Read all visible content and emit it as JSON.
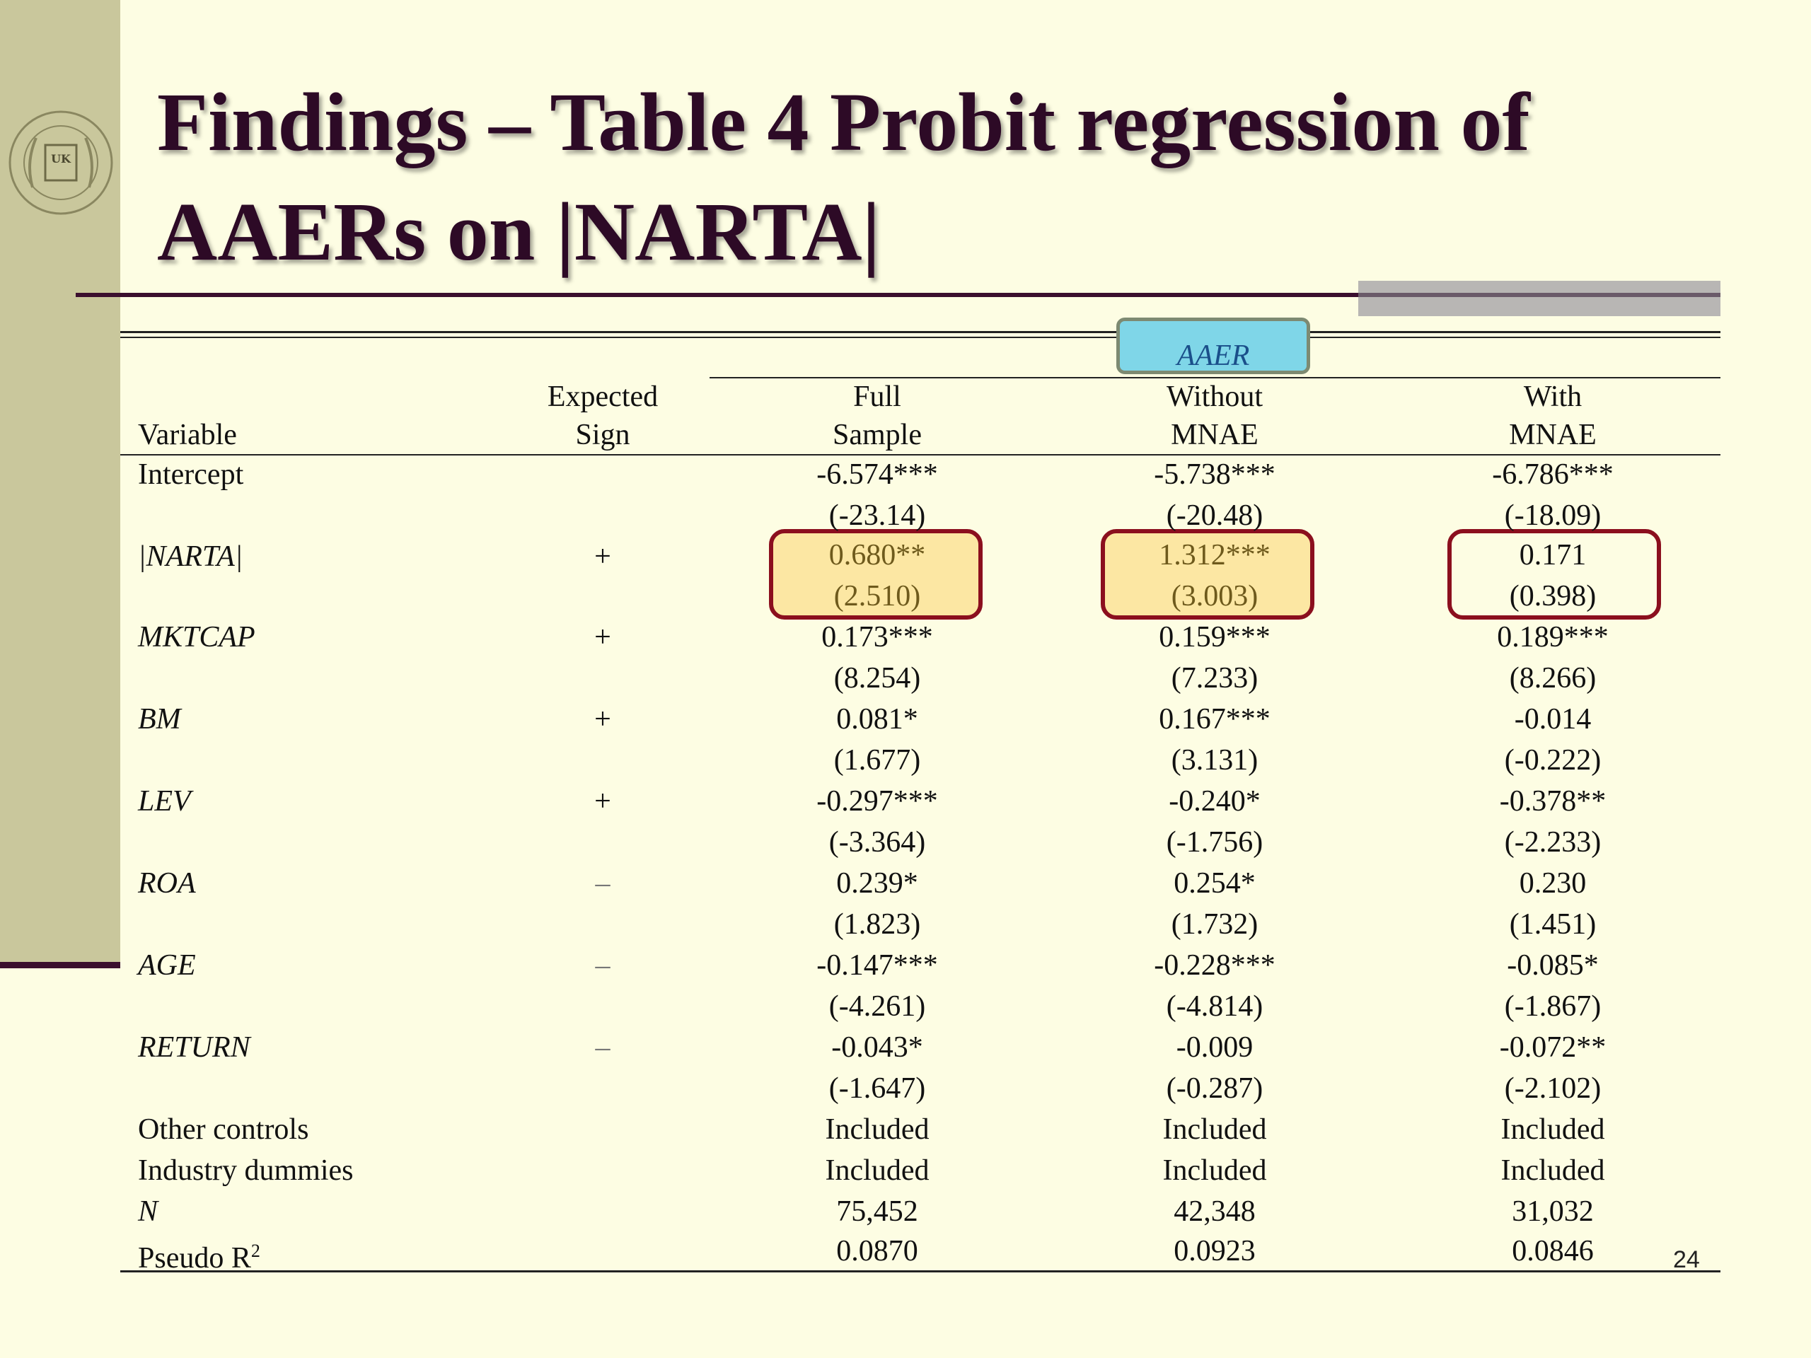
{
  "slide": {
    "title_line1": "Findings – Table 4 Probit regression of",
    "title_line2": "AAERs on |NARTA|",
    "page_number": "24",
    "logo_text": "GATTON COLLEGE OF BUSINESS AND ECONOMICS",
    "logo_mark": "UK"
  },
  "table": {
    "group_header": "AAER",
    "headers": {
      "variable": "Variable",
      "sign_line1": "Expected",
      "sign_line2": "Sign",
      "full_line1": "Full",
      "full_line2": "Sample",
      "wo_line1": "Without",
      "wo_line2": "MNAE",
      "w_line1": "With",
      "w_line2": "MNAE"
    },
    "rows": [
      {
        "var": "Intercept",
        "sign": "",
        "full": "-6.574***",
        "full_t": "(-23.14)",
        "wo": "-5.738***",
        "wo_t": "(-20.48)",
        "w": "-6.786***",
        "w_t": "(-18.09)"
      },
      {
        "var": "|NARTA|",
        "sign": "+",
        "full": "0.680**",
        "full_t": "(2.510)",
        "wo": "1.312***",
        "wo_t": "(3.003)",
        "w": "0.171",
        "w_t": "(0.398)"
      },
      {
        "var": "MKTCAP",
        "sign": "+",
        "full": "0.173***",
        "full_t": "(8.254)",
        "wo": "0.159***",
        "wo_t": "(7.233)",
        "w": "0.189***",
        "w_t": "(8.266)"
      },
      {
        "var": "BM",
        "sign": "+",
        "full": "0.081*",
        "full_t": "(1.677)",
        "wo": "0.167***",
        "wo_t": "(3.131)",
        "w": "-0.014",
        "w_t": "(-0.222)"
      },
      {
        "var": "LEV",
        "sign": "+",
        "full": "-0.297***",
        "full_t": "(-3.364)",
        "wo": "-0.240*",
        "wo_t": "(-1.756)",
        "w": "-0.378**",
        "w_t": "(-2.233)"
      },
      {
        "var": "ROA",
        "sign": "–",
        "full": "0.239*",
        "full_t": "(1.823)",
        "wo": "0.254*",
        "wo_t": "(1.732)",
        "w": "0.230",
        "w_t": "(1.451)"
      },
      {
        "var": "AGE",
        "sign": "–",
        "full": "-0.147***",
        "full_t": "(-4.261)",
        "wo": "-0.228***",
        "wo_t": "(-4.814)",
        "w": "-0.085*",
        "w_t": "(-1.867)"
      },
      {
        "var": "RETURN",
        "sign": "–",
        "full": "-0.043*",
        "full_t": "(-1.647)",
        "wo": "-0.009",
        "wo_t": "(-0.287)",
        "w": "-0.072**",
        "w_t": "(-2.102)"
      }
    ],
    "footer_rows": [
      {
        "var": "Other controls",
        "full": "Included",
        "wo": "Included",
        "w": "Included"
      },
      {
        "var": "Industry dummies",
        "full": "Included",
        "wo": "Included",
        "w": "Included"
      },
      {
        "var": "N",
        "full": "75,452",
        "wo": "42,348",
        "w": "31,032"
      },
      {
        "var": "Pseudo R",
        "var_sup": "2",
        "full": "0.0870",
        "wo": "0.0923",
        "w": "0.0846"
      }
    ]
  }
}
